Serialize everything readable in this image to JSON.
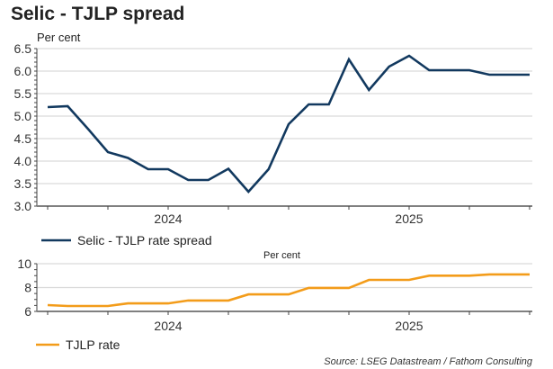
{
  "title": "Selic - TJLP spread",
  "source": "Source: LSEG Datastream / Fathom Consulting",
  "colors": {
    "spread": "#12395f",
    "tjlp": "#f39c1a",
    "grid": "#d9d9d9",
    "axis": "#808080"
  },
  "chart_data": [
    {
      "type": "line",
      "title": "Selic - TJLP spread",
      "ylabel": "Per cent",
      "xlabel": "",
      "ylim": [
        3.0,
        6.5
      ],
      "yticks": [
        "3.0",
        "3.5",
        "4.0",
        "4.5",
        "5.0",
        "5.5",
        "6.0",
        "6.5"
      ],
      "ytick_values": [
        3.0,
        3.5,
        4.0,
        4.5,
        5.0,
        5.5,
        6.0,
        6.5
      ],
      "grid": true,
      "x": [
        "2024-01",
        "2024-02",
        "2024-03",
        "2024-04",
        "2024-05",
        "2024-06",
        "2024-07",
        "2024-08",
        "2024-09",
        "2024-10",
        "2024-11",
        "2024-12",
        "2025-01",
        "2025-02",
        "2025-03",
        "2025-04",
        "2025-05",
        "2025-06",
        "2025-07",
        "2025-08",
        "2025-09",
        "2025-10",
        "2025-11",
        "2025-12",
        "2026-01"
      ],
      "xtick_labels": [
        "2024",
        "2025"
      ],
      "legend_position": "bottom-left",
      "series": [
        {
          "name": "Selic - TJLP rate spread",
          "color": "#12395f",
          "values": [
            5.2,
            5.22,
            4.72,
            4.2,
            4.07,
            3.82,
            3.82,
            3.58,
            3.58,
            3.83,
            3.32,
            3.82,
            4.82,
            5.26,
            5.26,
            6.26,
            5.58,
            6.1,
            6.34,
            6.02,
            6.02,
            6.02,
            5.92,
            5.92,
            5.92
          ]
        }
      ]
    },
    {
      "type": "line",
      "title": "",
      "ylabel": "Per cent",
      "xlabel": "",
      "ylim": [
        6,
        10
      ],
      "yticks": [
        "6",
        "8",
        "10"
      ],
      "ytick_values": [
        6,
        8,
        10
      ],
      "grid": true,
      "x": [
        "2024-01",
        "2024-02",
        "2024-03",
        "2024-04",
        "2024-05",
        "2024-06",
        "2024-07",
        "2024-08",
        "2024-09",
        "2024-10",
        "2024-11",
        "2024-12",
        "2025-01",
        "2025-02",
        "2025-03",
        "2025-04",
        "2025-05",
        "2025-06",
        "2025-07",
        "2025-08",
        "2025-09",
        "2025-10",
        "2025-11",
        "2025-12",
        "2026-01"
      ],
      "xtick_labels": [
        "2024",
        "2025"
      ],
      "legend_position": "bottom-left",
      "series": [
        {
          "name": "TJLP rate",
          "color": "#f39c1a",
          "values": [
            6.53,
            6.45,
            6.45,
            6.45,
            6.67,
            6.67,
            6.67,
            6.91,
            6.91,
            6.91,
            7.43,
            7.43,
            7.43,
            7.97,
            7.97,
            7.97,
            8.64,
            8.64,
            8.64,
            9.0,
            9.0,
            9.0,
            9.1,
            9.1,
            9.1
          ]
        }
      ]
    }
  ]
}
